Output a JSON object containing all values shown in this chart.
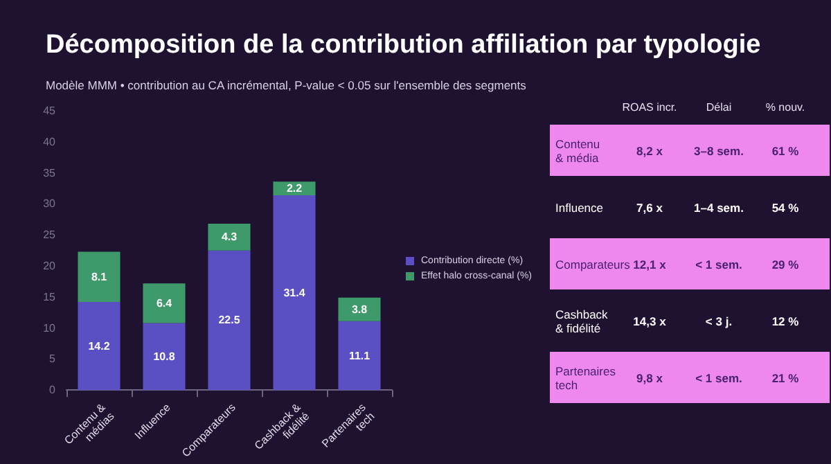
{
  "chart_data": [
    {
      "type": "bar",
      "title": "Décomposition de la contribution affiliation par typologie",
      "subtitle": "Modèle MMM • contribution au CA incrémental, P-value < 0.05 sur l'ensemble des segments",
      "categories": [
        "Contenu &\nmédias",
        "Influence",
        "Comparateurs",
        "Cashback &\nfidélité",
        "Partenaires\ntech"
      ],
      "stacked": true,
      "data_labels": true,
      "legend": "right",
      "grid": false,
      "ylim": [
        0,
        45
      ],
      "yticks": [
        0,
        5,
        10,
        15,
        20,
        25,
        30,
        35,
        40,
        45
      ],
      "series": [
        {
          "name": "Contribution directe (%)",
          "color": "#5b4fc4",
          "values": [
            14.2,
            10.8,
            22.5,
            31.4,
            11.1
          ]
        },
        {
          "name": "Effet halo cross-canal (%)",
          "color": "#3f9a6b",
          "values": [
            8.1,
            6.4,
            4.3,
            2.2,
            3.8
          ]
        }
      ]
    },
    {
      "type": "other",
      "categories": [
        "ROAS incr.",
        "Délai",
        "% nouv."
      ],
      "y_categories": [
        "Contenu\n& média",
        "Influence",
        "Comparateurs",
        "Cashback\n& fidélité",
        "Partenaires\ntech"
      ],
      "cell_labels": [
        [
          "8,2 x",
          "3–8 sem.",
          "61 %"
        ],
        [
          "7,6 x",
          "1–4 sem.",
          "54 %"
        ],
        [
          "12,1 x",
          "< 1 sem.",
          "29 %"
        ],
        [
          "14,3 x",
          "< 3 j.",
          "12 %"
        ],
        [
          "9,8 x",
          "< 1 sem.",
          "21 %"
        ]
      ]
    }
  ]
}
